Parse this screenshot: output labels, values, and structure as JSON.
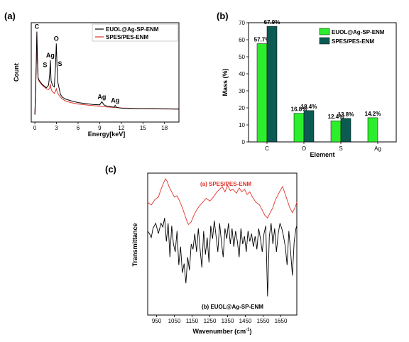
{
  "chart_data": [
    {
      "panel": "(a)",
      "type": "line",
      "title": "",
      "xlabel": "Energy[keV]",
      "ylabel": "Count",
      "xlim": [
        -0.5,
        20
      ],
      "xticks": [
        "0",
        "3",
        "6",
        "9",
        "12",
        "15",
        "18"
      ],
      "legend_position": "top-right",
      "series": [
        {
          "name": "EUOL@Ag-SP-ENM",
          "color": "#000000",
          "x": [
            0,
            0.1,
            0.2,
            0.28,
            0.35,
            0.45,
            0.6,
            0.8,
            1.0,
            1.3,
            1.6,
            1.9,
            2.05,
            2.15,
            2.25,
            2.4,
            2.55,
            2.7,
            2.85,
            2.98,
            3.08,
            3.2,
            3.35,
            3.55,
            3.8,
            4.2,
            5,
            6,
            7,
            8,
            9,
            9.3,
            9.6,
            9.9,
            10.5,
            11,
            11.15,
            11.3,
            11.6,
            12,
            14,
            16,
            18,
            20
          ],
          "y": [
            5,
            30,
            62,
            95,
            68,
            45,
            42,
            40,
            38,
            36,
            34,
            37,
            48,
            64,
            42,
            38,
            36,
            35,
            55,
            82,
            58,
            40,
            34,
            27,
            24,
            22,
            20,
            18,
            17,
            16,
            15.5,
            19,
            15.5,
            14.5,
            13.5,
            13,
            15,
            13,
            12.5,
            12,
            11.5,
            11.5,
            11.2,
            11
          ]
        },
        {
          "name": "SPES/PES-ENM",
          "color": "#e0332a",
          "x": [
            0,
            0.1,
            0.2,
            0.28,
            0.35,
            0.45,
            0.6,
            0.8,
            1.0,
            1.3,
            1.6,
            1.9,
            2.05,
            2.15,
            2.25,
            2.4,
            2.55,
            2.7,
            2.85,
            2.98,
            3.08,
            3.2,
            3.35,
            3.55,
            3.8,
            4.2,
            5,
            6,
            7,
            8,
            9,
            10,
            12,
            14,
            16,
            18,
            20
          ],
          "y": [
            5,
            28,
            60,
            92,
            66,
            44,
            41,
            39,
            37,
            35,
            33,
            32,
            34,
            38,
            33,
            30,
            29,
            28,
            30,
            33,
            30,
            28,
            26,
            24,
            22,
            20,
            18,
            16.5,
            15.5,
            14.8,
            14,
            13.2,
            12.2,
            11.6,
            11.3,
            11.1,
            11
          ]
        }
      ],
      "annotations": [
        {
          "text": "C",
          "x": 0.28,
          "y": 95
        },
        {
          "text": "O",
          "x": 2.98,
          "y": 82
        },
        {
          "text": "Ag",
          "x": 2.15,
          "y": 64
        },
        {
          "text": "S",
          "x": 1.9,
          "y": 55
        },
        {
          "text": "S",
          "x": 3.1,
          "y": 56
        },
        {
          "text": "Ag",
          "x": 9.3,
          "y": 19
        },
        {
          "text": "Ag",
          "x": 11.15,
          "y": 15
        }
      ]
    },
    {
      "panel": "(b)",
      "type": "bar",
      "title": "",
      "xlabel": "Element",
      "ylabel": "Mass (%)",
      "ylim": [
        0,
        70
      ],
      "yticks": [
        0,
        10,
        20,
        30,
        40,
        50,
        60,
        70
      ],
      "categories": [
        "C",
        "O",
        "S",
        "Ag"
      ],
      "legend_position": "top-right",
      "series": [
        {
          "name": "EUOL@Ag-SP-ENM",
          "color": "#2cee2c",
          "values": [
            57.7,
            16.8,
            12.4,
            14.2
          ],
          "labels": [
            "57.7%",
            "16.8%",
            "12.4%",
            "14.2%"
          ]
        },
        {
          "name": "SPES/PES-ENM",
          "color": "#0b5b52",
          "values": [
            67.9,
            18.4,
            13.8,
            null
          ],
          "labels": [
            "67.9%",
            "18.4%",
            "13.8%",
            ""
          ]
        }
      ]
    },
    {
      "panel": "(c)",
      "type": "line",
      "title": "",
      "xlabel": "Wavenumber (cm",
      "xlabel_sup": "-1",
      "xlabel_end": ")",
      "ylabel": "Transmittance",
      "xlim": [
        900,
        1740
      ],
      "xticks": [
        950,
        1050,
        1150,
        1250,
        1350,
        1450,
        1550,
        1650
      ],
      "series": [
        {
          "name": "(a) SPES/PES-ENM",
          "color": "#e0332a",
          "x": [
            900,
            920,
            940,
            960,
            975,
            990,
            1000,
            1010,
            1020,
            1035,
            1050,
            1065,
            1080,
            1095,
            1110,
            1120,
            1130,
            1145,
            1160,
            1175,
            1190,
            1210,
            1230,
            1250,
            1270,
            1290,
            1305,
            1320,
            1335,
            1350,
            1365,
            1380,
            1400,
            1415,
            1430,
            1445,
            1460,
            1475,
            1490,
            1510,
            1530,
            1545,
            1560,
            1575,
            1590,
            1605,
            1620,
            1635,
            1650,
            1660,
            1670,
            1685,
            1700,
            1715,
            1730,
            1740
          ],
          "y": [
            82,
            80,
            84,
            86,
            92,
            97,
            100,
            98,
            94,
            90,
            86,
            87,
            83,
            78,
            72,
            68,
            65,
            67,
            72,
            76,
            79,
            82,
            85,
            83,
            86,
            90,
            92,
            94,
            90,
            95,
            91,
            92,
            89,
            93,
            90,
            92,
            88,
            90,
            86,
            82,
            80,
            76,
            72,
            70,
            74,
            78,
            84,
            88,
            92,
            94,
            90,
            84,
            78,
            74,
            78,
            82
          ]
        },
        {
          "name": "(b) EUOL@Ag-SP-ENM",
          "color": "#000000",
          "x": [
            900,
            910,
            920,
            930,
            945,
            960,
            975,
            985,
            995,
            1005,
            1015,
            1025,
            1035,
            1045,
            1055,
            1065,
            1075,
            1085,
            1095,
            1105,
            1115,
            1125,
            1135,
            1145,
            1155,
            1165,
            1175,
            1185,
            1195,
            1205,
            1215,
            1225,
            1235,
            1245,
            1255,
            1265,
            1275,
            1285,
            1295,
            1305,
            1315,
            1325,
            1335,
            1345,
            1355,
            1365,
            1375,
            1385,
            1395,
            1405,
            1415,
            1425,
            1435,
            1445,
            1455,
            1465,
            1475,
            1485,
            1495,
            1505,
            1515,
            1525,
            1535,
            1545,
            1555,
            1565,
            1575,
            1585,
            1595,
            1605,
            1615,
            1625,
            1635,
            1645,
            1655,
            1665,
            1675,
            1685,
            1695,
            1705,
            1715,
            1725,
            1735,
            1740
          ],
          "y": [
            60,
            58,
            55,
            62,
            66,
            58,
            66,
            63,
            70,
            52,
            66,
            40,
            64,
            50,
            44,
            60,
            34,
            48,
            28,
            35,
            20,
            40,
            30,
            50,
            46,
            58,
            44,
            62,
            46,
            32,
            60,
            42,
            55,
            36,
            64,
            54,
            68,
            56,
            44,
            66,
            52,
            40,
            62,
            54,
            66,
            50,
            62,
            48,
            60,
            52,
            40,
            62,
            50,
            56,
            44,
            60,
            52,
            58,
            48,
            56,
            46,
            62,
            54,
            44,
            58,
            64,
            10,
            56,
            66,
            50,
            62,
            44,
            58,
            66,
            62,
            56,
            48,
            34,
            60,
            44,
            26,
            52,
            62,
            64
          ]
        }
      ]
    }
  ]
}
